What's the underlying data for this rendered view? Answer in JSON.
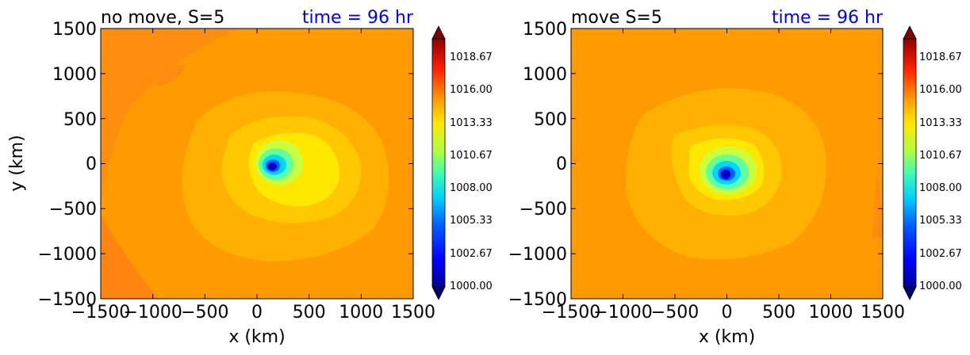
{
  "chart_data": [
    {
      "type": "heatmap",
      "title_left": "no move, S=5",
      "title_right": "time = 96 hr",
      "xlabel": "x (km)",
      "ylabel": "y (km)",
      "xlim": [
        -1500,
        1500
      ],
      "ylim": [
        -1500,
        1500
      ],
      "xticks": [
        "−1500",
        "−1000",
        "−500",
        "0",
        "500",
        "1000",
        "1500"
      ],
      "yticks": [
        "1500",
        "1000",
        "500",
        "0",
        "−500",
        "−1000",
        "−1500"
      ],
      "center": {
        "x": 340,
        "y": -40
      },
      "colorbar": {
        "range": [
          1000,
          1020
        ],
        "ticks": [
          "1000.00",
          "1002.67",
          "1005.33",
          "1008.00",
          "1010.67",
          "1013.33",
          "1016.00",
          "1018.67"
        ]
      }
    },
    {
      "type": "heatmap",
      "title_left": "move S=5",
      "title_right": "time = 96 hr",
      "xlabel": "x (km)",
      "ylabel": "",
      "xlim": [
        -1500,
        1500
      ],
      "ylim": [
        -1500,
        1500
      ],
      "xticks": [
        "−1500",
        "−1000",
        "−500",
        "0",
        "500",
        "1000",
        "1500"
      ],
      "yticks": [
        "1500",
        "1000",
        "500",
        "0",
        "−500",
        "−1000",
        "−1500"
      ],
      "center": {
        "x": 0,
        "y": -120
      },
      "colorbar": {
        "range": [
          1000,
          1020
        ],
        "ticks": [
          "1000.00",
          "1002.67",
          "1005.33",
          "1008.00",
          "1010.67",
          "1013.33",
          "1016.00",
          "1018.67"
        ]
      }
    }
  ],
  "colors": {
    "background_field": "#ff9a00",
    "outer_edge": "#ff8c10",
    "ring_mid": "#ffb800",
    "ring_inner": "#ffe800",
    "core_green": "#88ff70",
    "core_cyan": "#00d8ff",
    "eye": "#0000c8",
    "title_right_color": "#0000ff"
  }
}
